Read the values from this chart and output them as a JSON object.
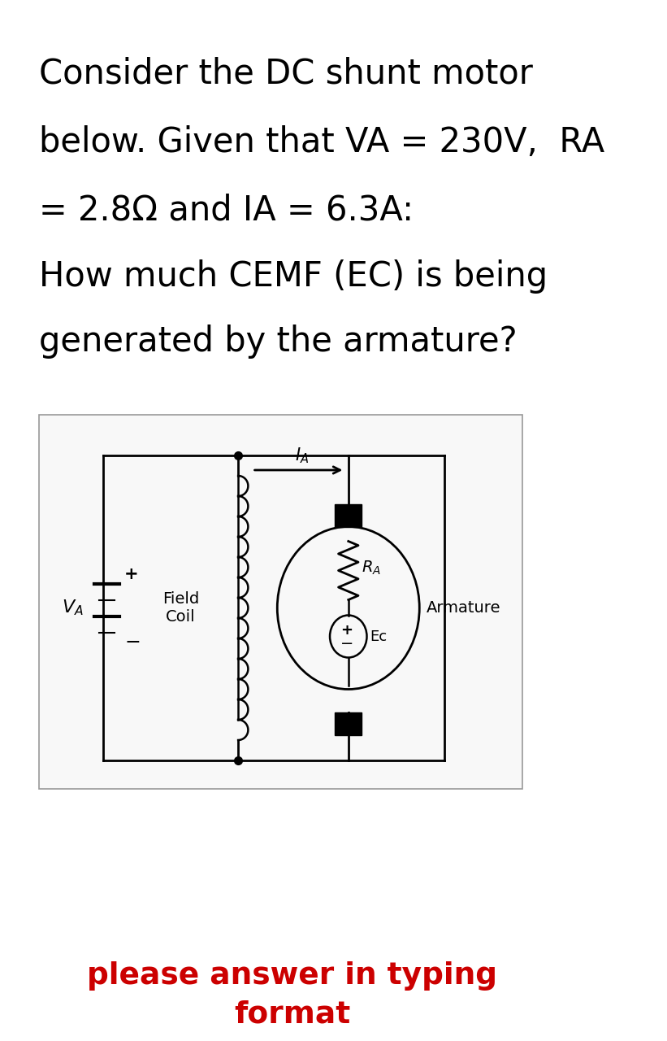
{
  "bg_color": "#ffffff",
  "text_color": "#000000",
  "red_color": "#cc0000",
  "title_line1": "Consider the DC shunt motor",
  "title_line2": "below. Given that VA = 230V,  RA",
  "title_line3": "= 2.8\\Omega and IA = 6.3A:",
  "title_line4": "How much CEMF (EC) is being",
  "title_line5": "generated by the armature?",
  "footer_line1": "please answer in typing",
  "footer_line2": "format",
  "VA_label": "VA",
  "IA_label": "IA",
  "RA_label": "RA",
  "EC_label": "Ec",
  "field_label": "Field\nCoil",
  "armature_label": "Armature"
}
